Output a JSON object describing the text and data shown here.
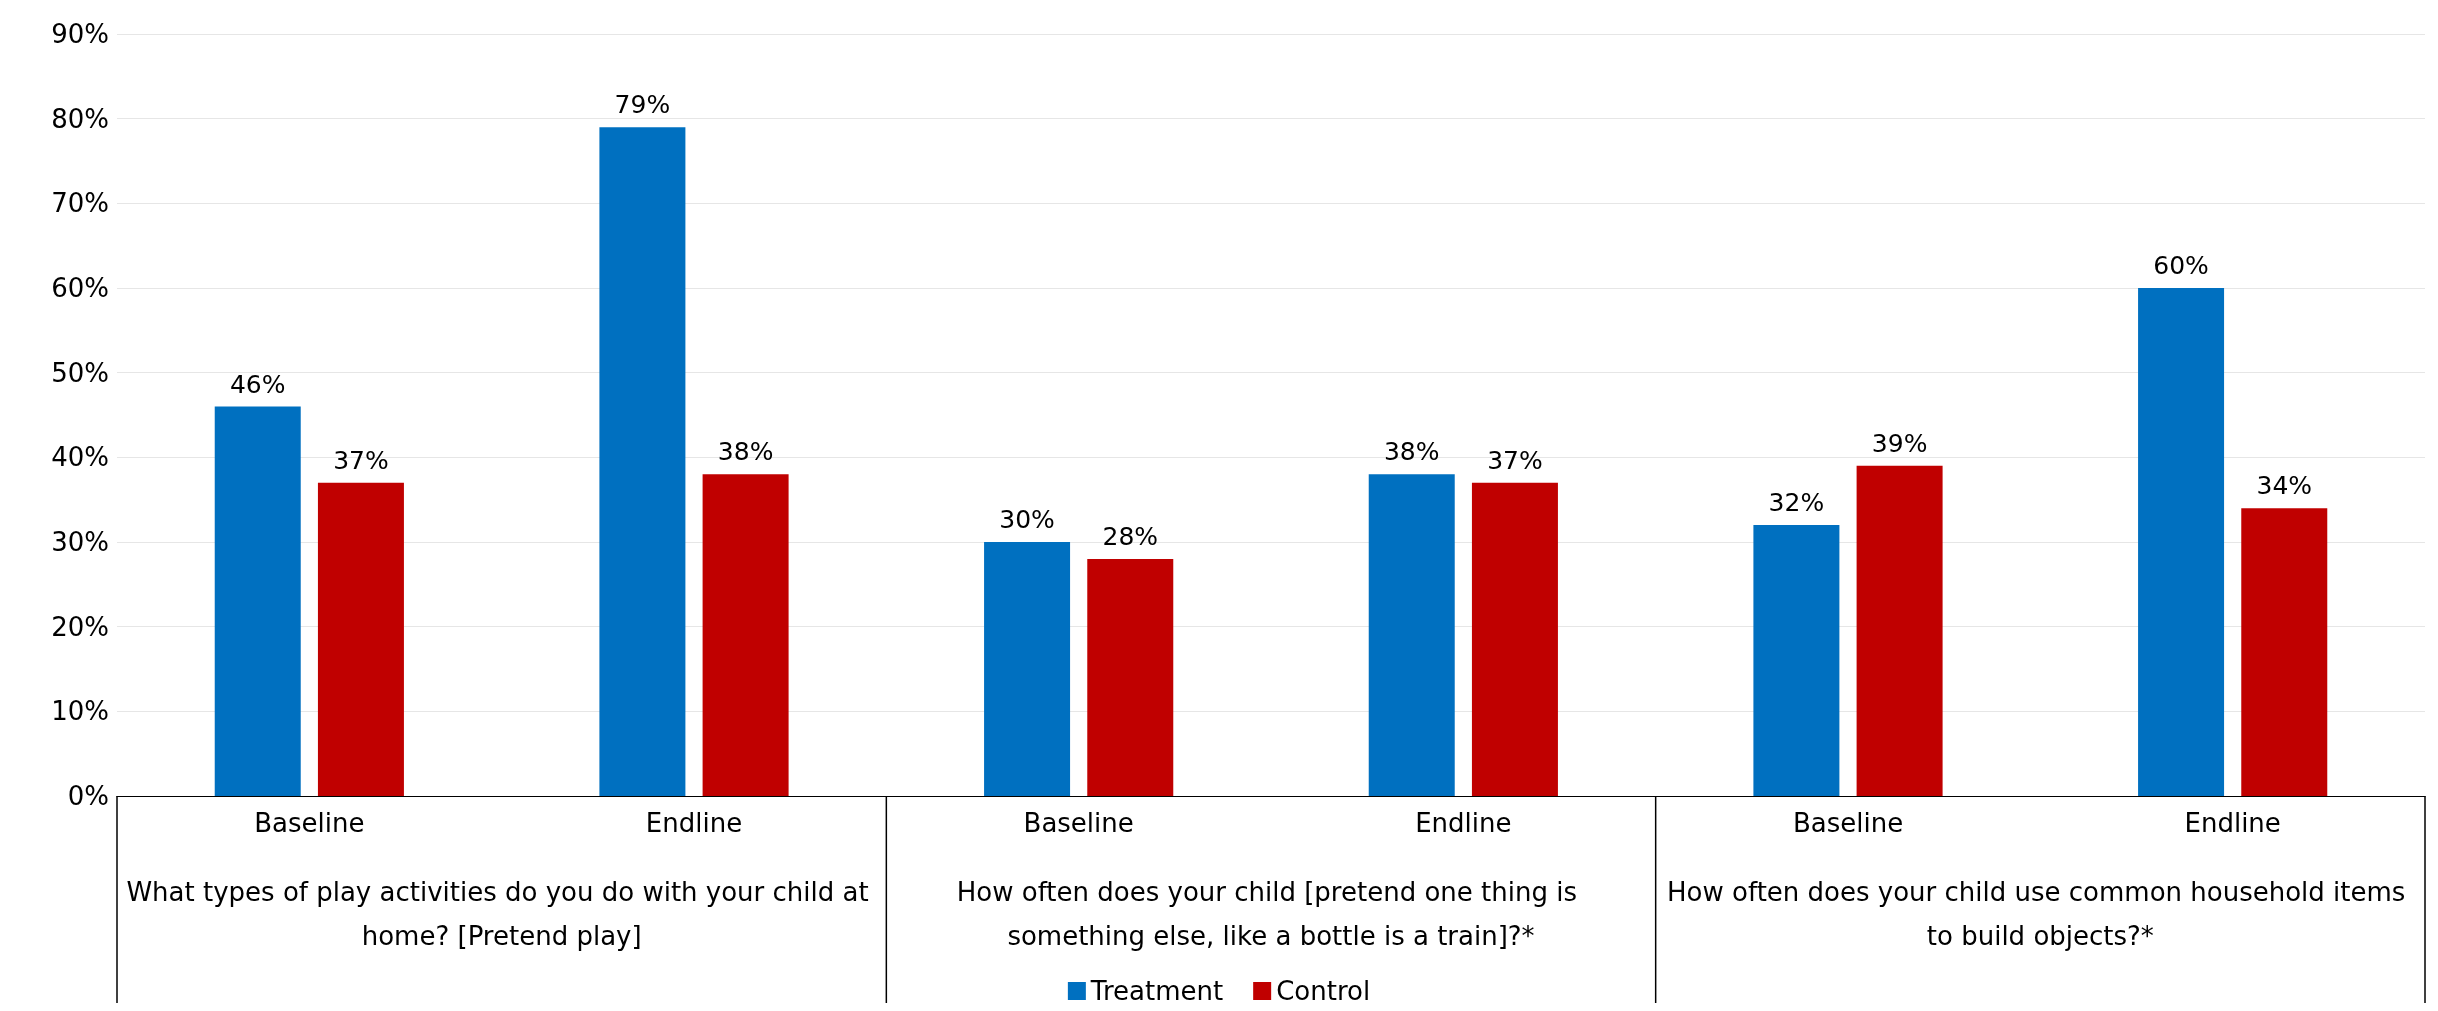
{
  "chart_data": {
    "type": "bar",
    "categories": [
      "Baseline",
      "Endline",
      "Baseline",
      "Endline",
      "Baseline",
      "Endline"
    ],
    "series": [
      {
        "name": "Treatment",
        "color": "#0070c0",
        "values": [
          46,
          79,
          30,
          38,
          32,
          60
        ],
        "value_labels": [
          "46%",
          "79%",
          "30%",
          "38%",
          "32%",
          "60%"
        ]
      },
      {
        "name": "Control",
        "color": "#c00000",
        "values": [
          37,
          38,
          28,
          37,
          39,
          34
        ],
        "value_labels": [
          "37%",
          "38%",
          "28%",
          "37%",
          "39%",
          "34%"
        ]
      }
    ],
    "annotations": [
      "What types of play activities do you do with your child at home? [Pretend play]",
      "How often does your child [pretend one thing is something else, like a bottle is a train]?*",
      "How often does your child use common household items to build objects?*"
    ],
    "ylim": [
      0,
      90
    ],
    "yticks": [
      {
        "value": 0,
        "label": "0%"
      },
      {
        "value": 10,
        "label": "10%"
      },
      {
        "value": 20,
        "label": "20%"
      },
      {
        "value": 30,
        "label": "30%"
      },
      {
        "value": 40,
        "label": "40%"
      },
      {
        "value": 50,
        "label": "50%"
      },
      {
        "value": 60,
        "label": "60%"
      },
      {
        "value": 70,
        "label": "70%"
      },
      {
        "value": 80,
        "label": "80%"
      },
      {
        "value": 90,
        "label": "90%"
      }
    ],
    "grid": "y",
    "legend": "bottom"
  }
}
